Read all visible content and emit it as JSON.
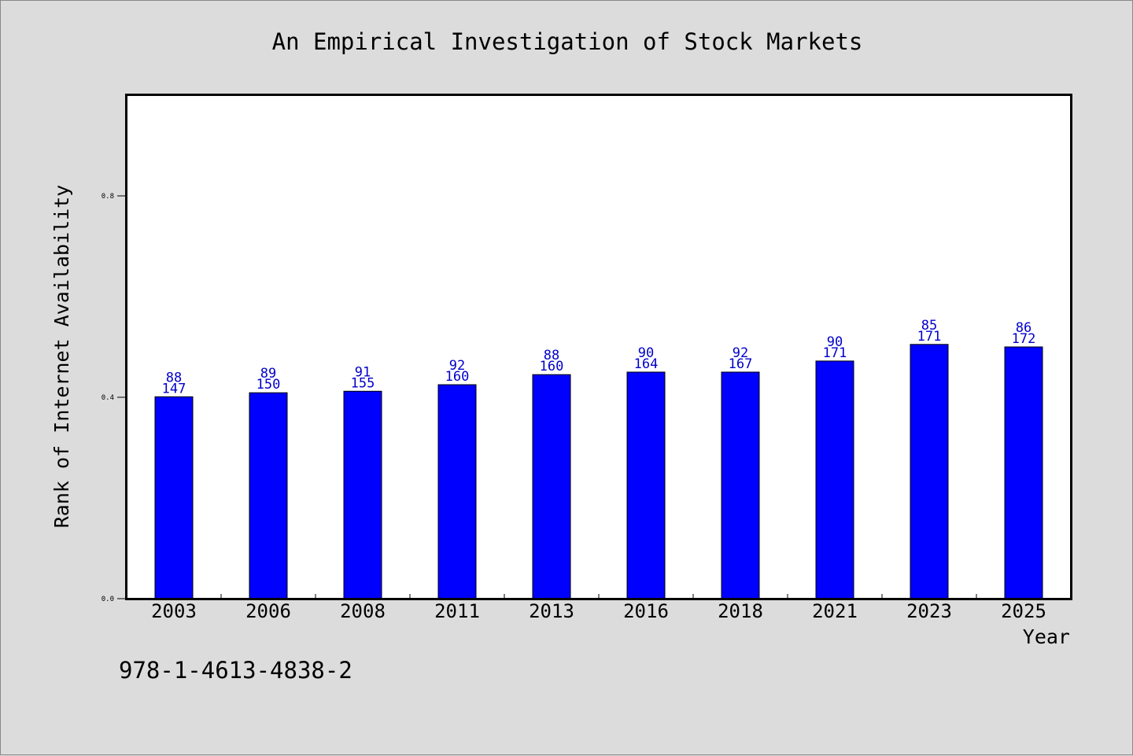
{
  "chart_data": {
    "type": "bar",
    "title": "An Empirical Investigation of Stock Markets",
    "xlabel": "Year",
    "ylabel": "Rank of Internet Availability",
    "categories": [
      "2003",
      "2006",
      "2008",
      "2011",
      "2013",
      "2016",
      "2018",
      "2021",
      "2023",
      "2025"
    ],
    "values": [
      0.401,
      0.409,
      0.412,
      0.425,
      0.445,
      0.45,
      0.45,
      0.472,
      0.505,
      0.5
    ],
    "labels_top": [
      "88",
      "89",
      "91",
      "92",
      "88",
      "90",
      "92",
      "90",
      "85",
      "86"
    ],
    "labels_bottom": [
      "147",
      "150",
      "155",
      "160",
      "160",
      "164",
      "167",
      "171",
      "171",
      "172"
    ],
    "ylim": [
      0,
      1.0
    ],
    "yticks": [
      0.0,
      0.4,
      0.8
    ],
    "ytick_labels": [
      "0.0",
      "0.4",
      "0.8"
    ],
    "grid": false,
    "bar_color": "#0000ff",
    "label_color": "#0000cc"
  },
  "footer": {
    "isbn": "978-1-4613-4838-2"
  }
}
